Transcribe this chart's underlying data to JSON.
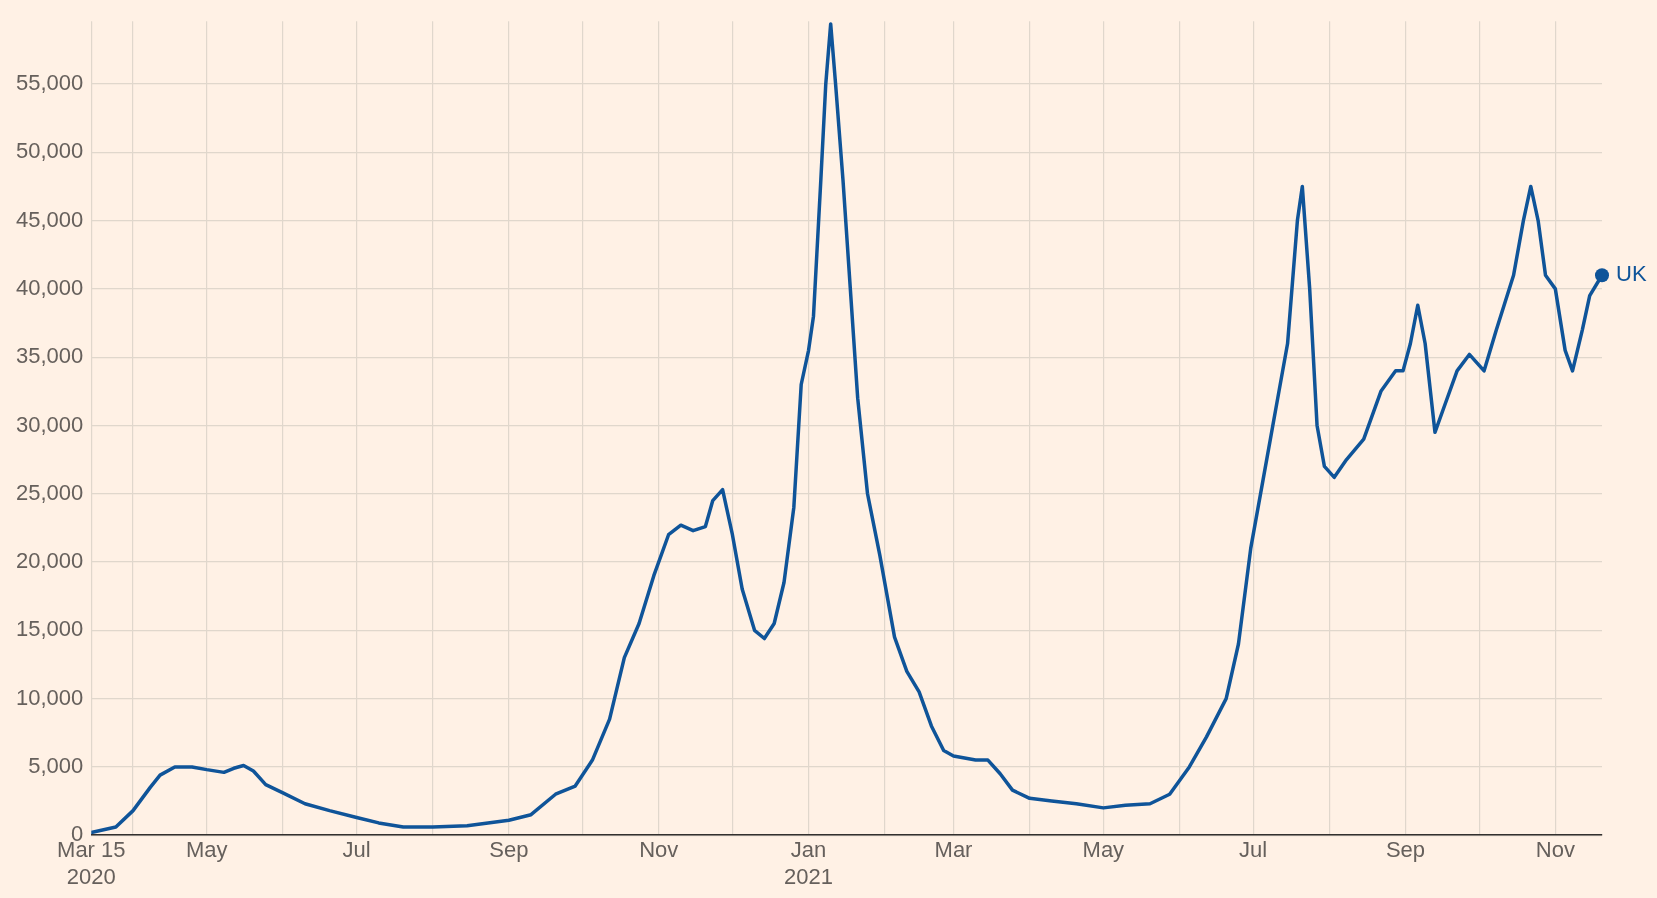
{
  "chart_data": {
    "type": "line",
    "x": [
      "2020-03-15",
      "2020-03-25",
      "2020-04-01",
      "2020-04-08",
      "2020-04-12",
      "2020-04-18",
      "2020-04-25",
      "2020-05-01",
      "2020-05-08",
      "2020-05-12",
      "2020-05-16",
      "2020-05-20",
      "2020-05-25",
      "2020-06-01",
      "2020-06-10",
      "2020-06-20",
      "2020-07-01",
      "2020-07-10",
      "2020-07-20",
      "2020-08-01",
      "2020-08-15",
      "2020-09-01",
      "2020-09-10",
      "2020-09-20",
      "2020-09-28",
      "2020-10-05",
      "2020-10-12",
      "2020-10-18",
      "2020-10-24",
      "2020-10-30",
      "2020-11-05",
      "2020-11-10",
      "2020-11-15",
      "2020-11-20",
      "2020-11-23",
      "2020-11-27",
      "2020-12-01",
      "2020-12-05",
      "2020-12-10",
      "2020-12-14",
      "2020-12-18",
      "2020-12-22",
      "2020-12-26",
      "2020-12-29",
      "2021-01-01",
      "2021-01-03",
      "2021-01-06",
      "2021-01-08",
      "2021-01-10",
      "2021-01-12",
      "2021-01-15",
      "2021-01-18",
      "2021-01-21",
      "2021-01-25",
      "2021-01-30",
      "2021-02-05",
      "2021-02-10",
      "2021-02-15",
      "2021-02-20",
      "2021-02-25",
      "2021-03-01",
      "2021-03-10",
      "2021-03-15",
      "2021-03-20",
      "2021-03-25",
      "2021-04-01",
      "2021-04-10",
      "2021-04-20",
      "2021-05-01",
      "2021-05-10",
      "2021-05-20",
      "2021-05-28",
      "2021-06-05",
      "2021-06-12",
      "2021-06-20",
      "2021-06-25",
      "2021-06-30",
      "2021-07-05",
      "2021-07-10",
      "2021-07-15",
      "2021-07-19",
      "2021-07-21",
      "2021-07-24",
      "2021-07-27",
      "2021-07-30",
      "2021-08-03",
      "2021-08-08",
      "2021-08-15",
      "2021-08-22",
      "2021-08-28",
      "2021-08-31",
      "2021-09-03",
      "2021-09-06",
      "2021-09-09",
      "2021-09-13",
      "2021-09-17",
      "2021-09-22",
      "2021-09-27",
      "2021-10-03",
      "2021-10-08",
      "2021-10-15",
      "2021-10-19",
      "2021-10-22",
      "2021-10-25",
      "2021-10-28",
      "2021-11-01",
      "2021-11-05",
      "2021-11-08",
      "2021-11-12",
      "2021-11-15",
      "2021-11-20"
    ],
    "series": [
      {
        "name": "UK",
        "color": "#0f5499",
        "values": [
          200,
          600,
          1800,
          3500,
          4400,
          5000,
          5000,
          4800,
          4600,
          4900,
          5100,
          4700,
          3700,
          3100,
          2300,
          1800,
          1300,
          900,
          600,
          600,
          700,
          1100,
          1500,
          3000,
          3600,
          5500,
          8500,
          13000,
          15500,
          19000,
          22000,
          22700,
          22300,
          22600,
          24500,
          25300,
          22000,
          18000,
          15000,
          14400,
          15500,
          18500,
          24000,
          33000,
          35500,
          38000,
          48000,
          55000,
          59400,
          55000,
          48000,
          40000,
          32000,
          25000,
          20500,
          14500,
          12000,
          10500,
          8000,
          6200,
          5800,
          5500,
          5500,
          4500,
          3300,
          2700,
          2500,
          2300,
          2000,
          2200,
          2300,
          3000,
          5000,
          7200,
          10000,
          14000,
          21000,
          26000,
          31000,
          36000,
          45000,
          47500,
          40000,
          30000,
          27000,
          26200,
          27500,
          29000,
          32500,
          34000,
          34000,
          36000,
          38800,
          36000,
          29500,
          31500,
          34000,
          35200,
          34000,
          37000,
          41000,
          45000,
          47500,
          45000,
          41000,
          40000,
          35500,
          34000,
          37000,
          39500,
          41000
        ]
      }
    ],
    "xlim": [
      "2020-03-15",
      "2021-11-20"
    ],
    "xticks": [
      {
        "value": "2020-03-15",
        "label": "Mar 15\n2020"
      },
      {
        "value": "2020-04-01",
        "label": null
      },
      {
        "value": "2020-05-01",
        "label": "May"
      },
      {
        "value": "2020-06-01",
        "label": null
      },
      {
        "value": "2020-07-01",
        "label": "Jul"
      },
      {
        "value": "2020-08-01",
        "label": null
      },
      {
        "value": "2020-09-01",
        "label": "Sep"
      },
      {
        "value": "2020-10-01",
        "label": null
      },
      {
        "value": "2020-11-01",
        "label": "Nov"
      },
      {
        "value": "2020-12-01",
        "label": null
      },
      {
        "value": "2021-01-01",
        "label": "Jan\n2021"
      },
      {
        "value": "2021-02-01",
        "label": null
      },
      {
        "value": "2021-03-01",
        "label": "Mar"
      },
      {
        "value": "2021-04-01",
        "label": null
      },
      {
        "value": "2021-05-01",
        "label": "May"
      },
      {
        "value": "2021-06-01",
        "label": null
      },
      {
        "value": "2021-07-01",
        "label": "Jul"
      },
      {
        "value": "2021-08-01",
        "label": null
      },
      {
        "value": "2021-09-01",
        "label": "Sep"
      },
      {
        "value": "2021-10-01",
        "label": null
      },
      {
        "value": "2021-11-01",
        "label": "Nov"
      }
    ],
    "ylim": [
      0,
      59600
    ],
    "yticks": [
      0,
      {
        "value": 5000,
        "label": "5,000"
      },
      {
        "value": 10000,
        "label": "10,000"
      },
      {
        "value": 15000,
        "label": "15,000"
      },
      {
        "value": 20000,
        "label": "20,000"
      },
      {
        "value": 25000,
        "label": "25,000"
      },
      {
        "value": 30000,
        "label": "30,000"
      },
      {
        "value": 35000,
        "label": "35,000"
      },
      {
        "value": 40000,
        "label": "40,000"
      },
      {
        "value": 45000,
        "label": "45,000"
      },
      {
        "value": 50000,
        "label": "50,000"
      },
      {
        "value": 55000,
        "label": "55,000"
      }
    ],
    "grid": true
  }
}
